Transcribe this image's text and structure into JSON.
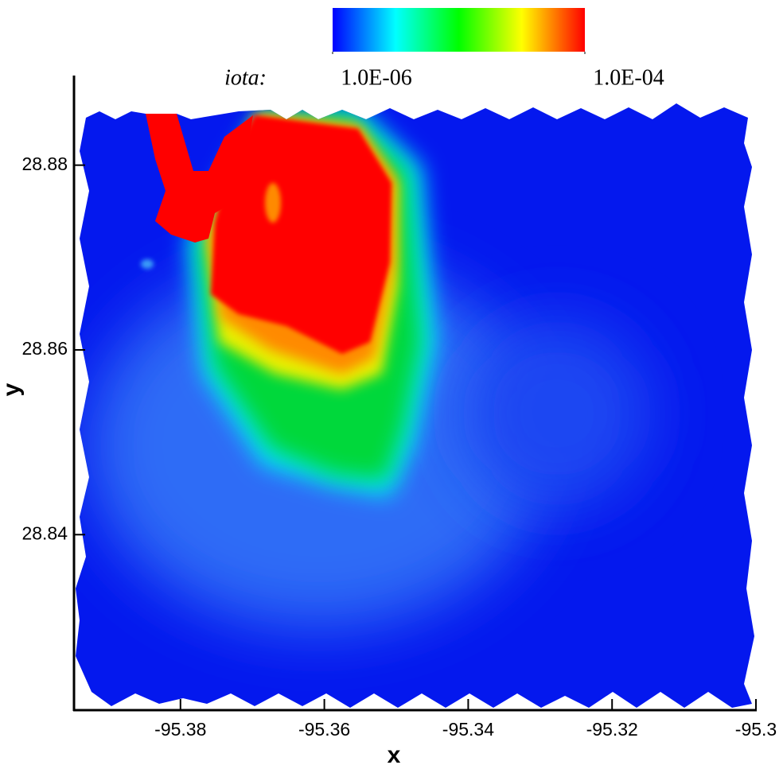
{
  "chart_data": {
    "type": "contour",
    "x_label": "x",
    "y_label": "y",
    "xlim": [
      -95.3948,
      -95.3
    ],
    "xticks": [
      -95.38,
      -95.36,
      -95.34,
      -95.32,
      -95.3
    ],
    "ylim": [
      28.821,
      28.8897
    ],
    "yticks": [
      28.84,
      28.86,
      28.88
    ],
    "colorbar": {
      "label": "iota:",
      "log": true,
      "lim": [
        1e-06,
        0.0001
      ],
      "colors": [
        "#0000ff",
        "#00ffff",
        "#00ff00",
        "#ffff00",
        "#ff0000"
      ],
      "ticks": [
        {
          "value": 1e-06,
          "label": "1.0E-06"
        },
        {
          "value": 0.0001,
          "label": "1.0E-04"
        }
      ]
    }
  }
}
